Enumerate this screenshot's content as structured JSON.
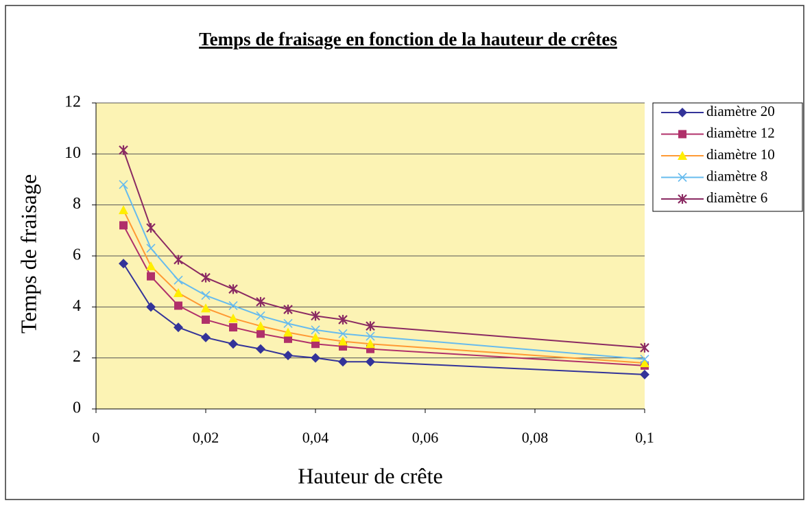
{
  "chart_data": {
    "type": "line",
    "title": "Temps de fraisage en fonction de la hauteur de crêtes",
    "xlabel": "Hauteur de crête",
    "ylabel": "Temps de fraisage",
    "x": [
      0.005,
      0.01,
      0.015,
      0.02,
      0.025,
      0.03,
      0.035,
      0.04,
      0.045,
      0.05,
      0.1
    ],
    "series": [
      {
        "name": "diamètre 20",
        "color": "#333399",
        "marker_color": "#333399",
        "marker": "diamond",
        "values": [
          5.7,
          4.0,
          3.2,
          2.8,
          2.55,
          2.35,
          2.1,
          2.0,
          1.85,
          1.85,
          1.35
        ]
      },
      {
        "name": "diamètre 12",
        "color": "#b0306a",
        "marker_color": "#b0306a",
        "marker": "square",
        "values": [
          7.2,
          5.2,
          4.05,
          3.5,
          3.2,
          2.95,
          2.75,
          2.55,
          2.45,
          2.35,
          1.7
        ]
      },
      {
        "name": "diamètre 10",
        "color": "#ff9933",
        "marker_color": "#ffee00",
        "marker": "triangle",
        "values": [
          7.8,
          5.6,
          4.55,
          3.95,
          3.55,
          3.25,
          3.0,
          2.8,
          2.65,
          2.55,
          1.8
        ]
      },
      {
        "name": "diamètre 8",
        "color": "#66bbee",
        "marker_color": "#66bbee",
        "marker": "x",
        "values": [
          8.8,
          6.3,
          5.05,
          4.45,
          4.05,
          3.65,
          3.35,
          3.1,
          2.95,
          2.85,
          1.95
        ]
      },
      {
        "name": "diamètre 6",
        "color": "#8a2a62",
        "marker_color": "#8a2a62",
        "marker": "star",
        "values": [
          10.15,
          7.1,
          5.85,
          5.15,
          4.7,
          4.2,
          3.9,
          3.65,
          3.5,
          3.25,
          2.4
        ]
      }
    ],
    "xlim": [
      0,
      0.1
    ],
    "xticks": [
      0,
      {
        "value": 0.02,
        "label": "0,02"
      },
      {
        "value": 0.04,
        "label": "0,04"
      },
      {
        "value": 0.06,
        "label": "0,06"
      },
      {
        "value": 0.08,
        "label": "0,08"
      },
      {
        "value": 0.1,
        "label": "0,1"
      }
    ],
    "ylim": [
      0,
      12
    ],
    "yticks": [
      0,
      2,
      4,
      6,
      8,
      10,
      12
    ],
    "grid": true,
    "legend": "right"
  }
}
